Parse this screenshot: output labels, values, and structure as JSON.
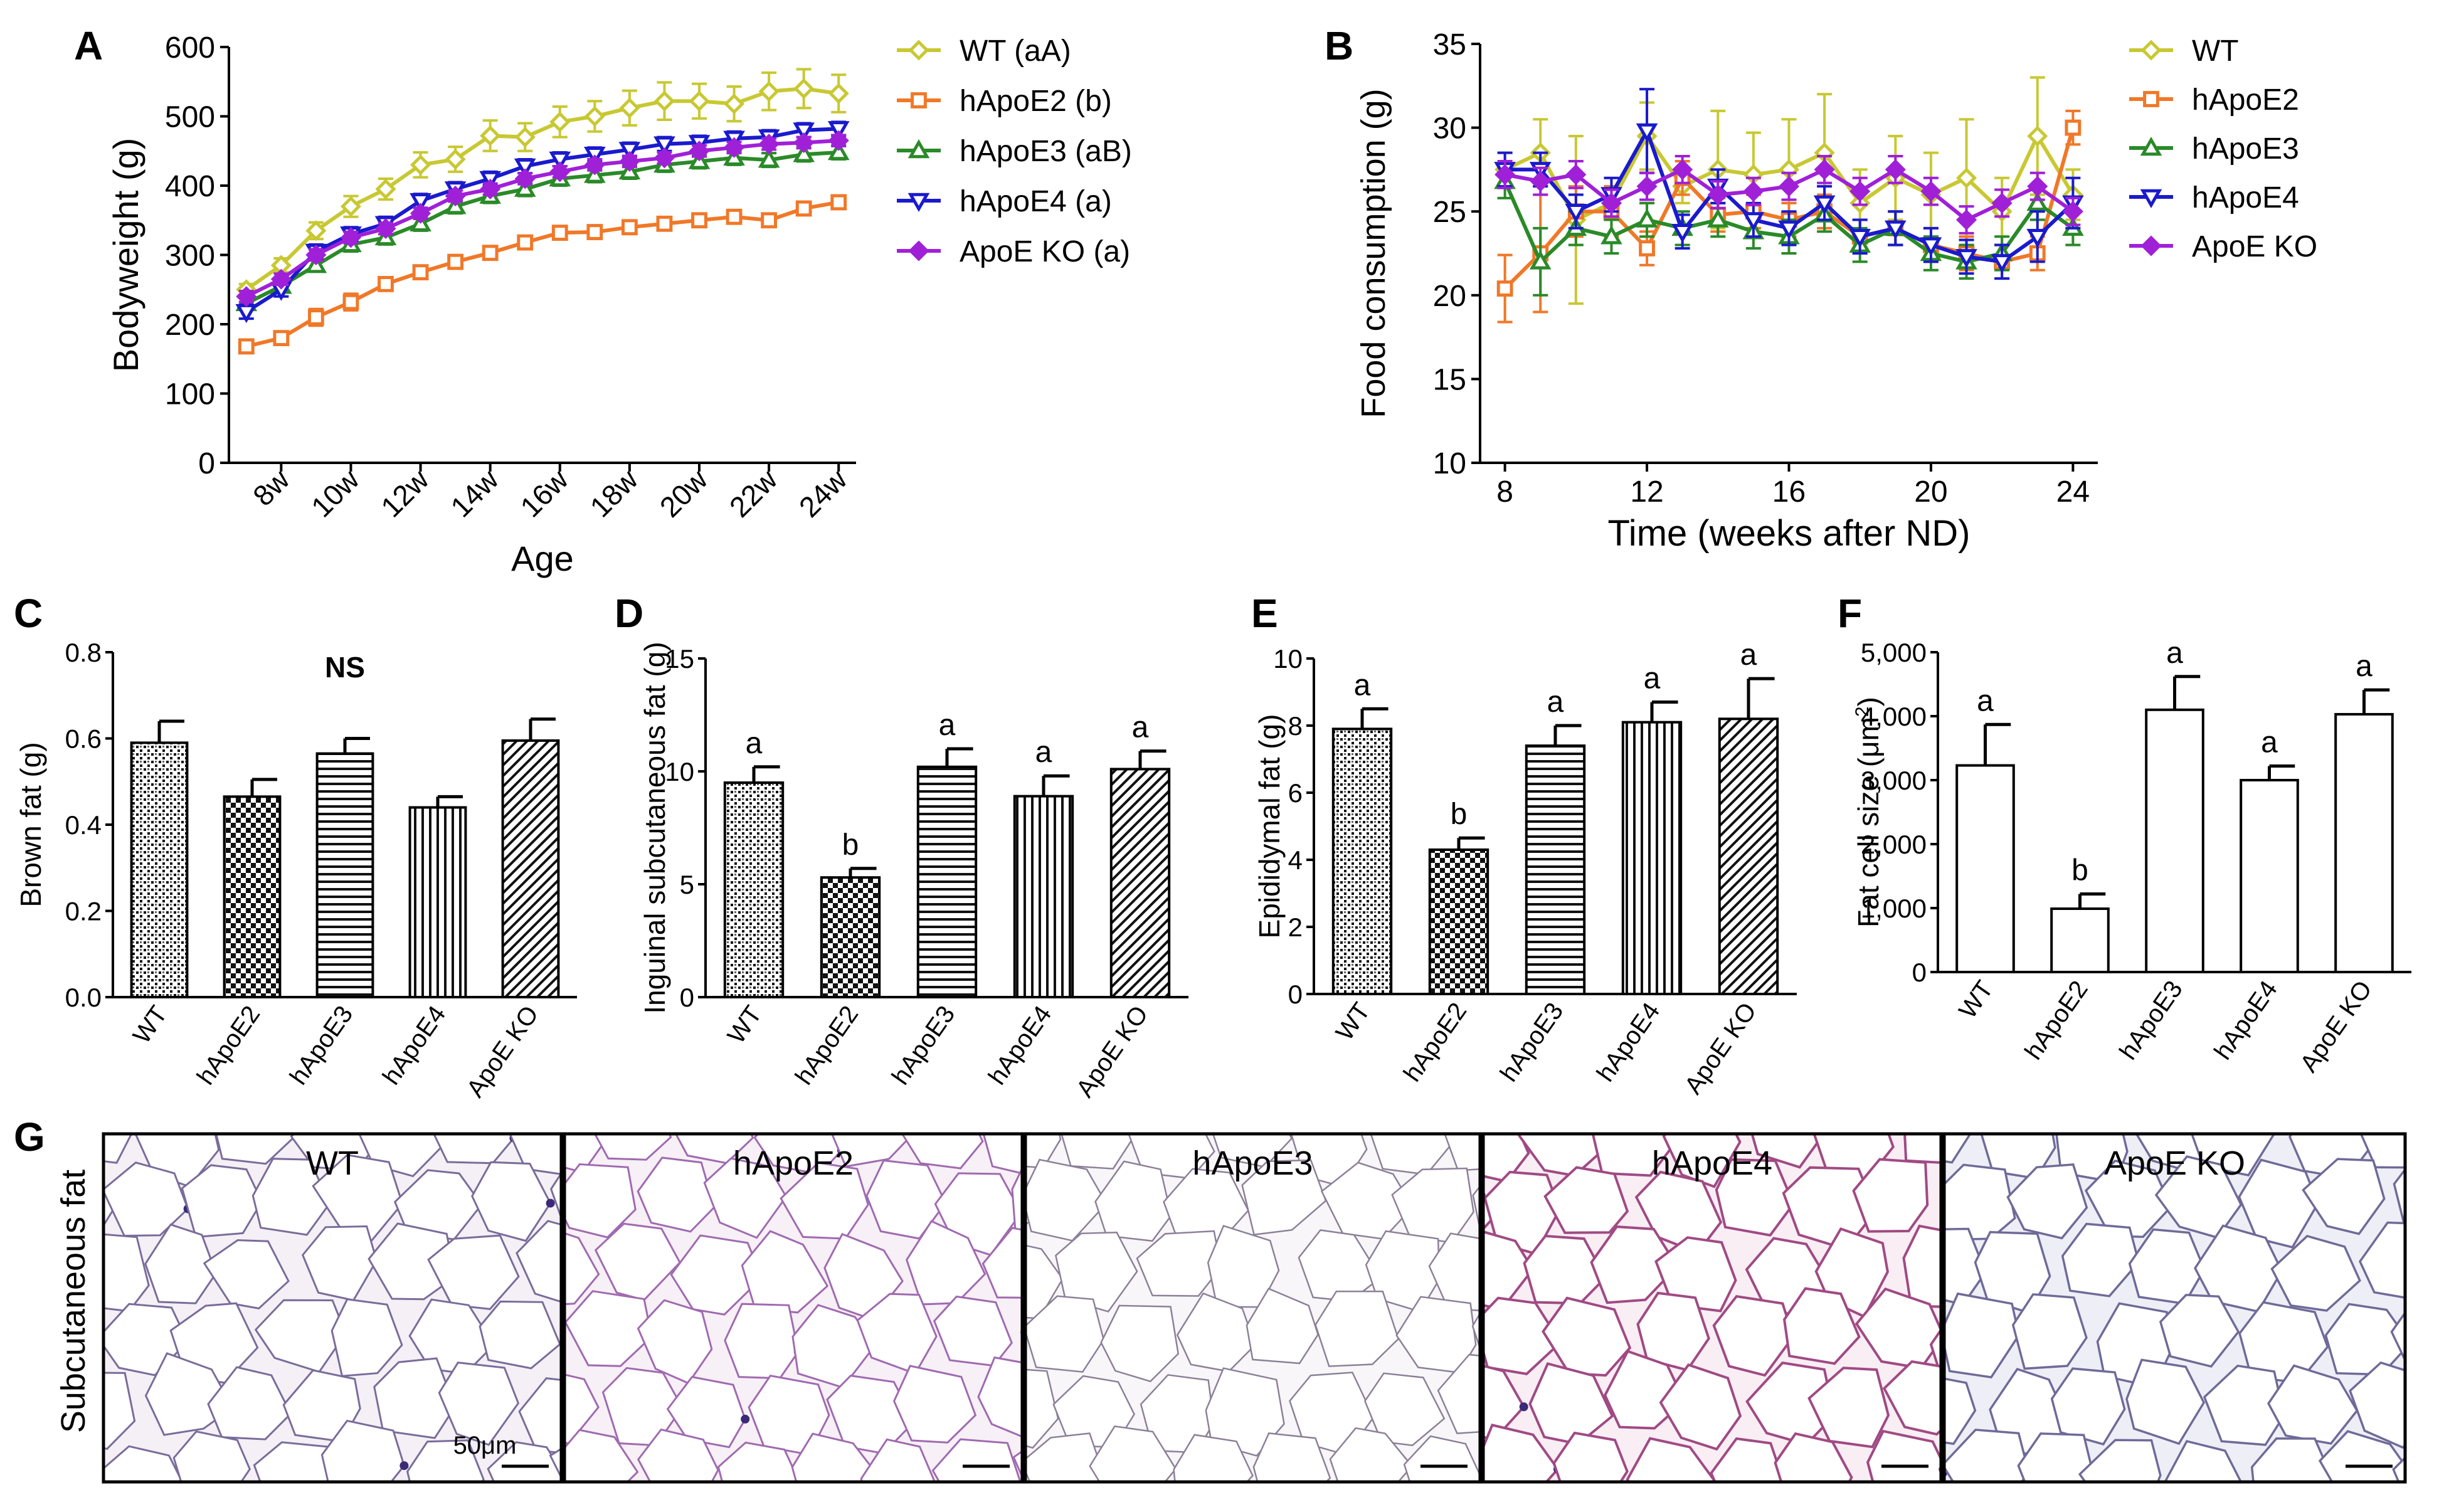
{
  "panels": {
    "A": "A",
    "B": "B",
    "C": "C",
    "D": "D",
    "E": "E",
    "F": "F",
    "G": "G"
  },
  "colors": {
    "WT": "#c8c832",
    "hApoE2": "#f07828",
    "hApoE3": "#2a8a28",
    "hApoE4": "#1a1acd",
    "ApoE KO": "#a020d8",
    "hApoE3_B": "#22c822"
  },
  "chart_data": [
    {
      "id": "A",
      "type": "line",
      "title": "",
      "xlabel": "Age",
      "ylabel": "Bodyweight (g)",
      "ylim": [
        0,
        600
      ],
      "yticks": [
        "0",
        "100",
        "200",
        "300",
        "400",
        "500",
        "600"
      ],
      "x": [
        7,
        8,
        9,
        10,
        11,
        12,
        13,
        14,
        15,
        16,
        17,
        18,
        19,
        20,
        21,
        22,
        23,
        24
      ],
      "xticks": [
        "8w",
        "10w",
        "12w",
        "14w",
        "16w",
        "18w",
        "20w",
        "22w",
        "24w"
      ],
      "xtick_values": [
        8,
        10,
        12,
        14,
        16,
        18,
        20,
        22,
        24
      ],
      "xlim": [
        6.5,
        24.5
      ],
      "legend_position": "right",
      "series": [
        {
          "name": "WT",
          "legend": "WT (aA)",
          "marker": "diamond-open",
          "values": [
            250,
            285,
            335,
            370,
            395,
            430,
            438,
            472,
            470,
            492,
            500,
            512,
            522,
            522,
            518,
            536,
            540,
            533
          ],
          "err": [
            8,
            10,
            12,
            15,
            15,
            18,
            18,
            22,
            20,
            22,
            22,
            25,
            27,
            25,
            25,
            27,
            28,
            27
          ]
        },
        {
          "name": "hApoE2",
          "legend": "hApoE2 (b)",
          "marker": "square-open",
          "values": [
            168,
            180,
            210,
            232,
            258,
            275,
            290,
            303,
            318,
            332,
            333,
            340,
            345,
            350,
            355,
            350,
            367,
            376
          ],
          "err": [
            6,
            6,
            12,
            12,
            8,
            8,
            8,
            8,
            8,
            8,
            8,
            8,
            8,
            8,
            8,
            8,
            8,
            8
          ]
        },
        {
          "name": "hApoE3",
          "legend": "hApoE3 (aB)",
          "marker": "triangle-open",
          "values": [
            230,
            255,
            285,
            315,
            325,
            345,
            370,
            385,
            395,
            410,
            415,
            420,
            430,
            435,
            440,
            437,
            445,
            448
          ],
          "err": [
            8,
            8,
            8,
            10,
            10,
            10,
            10,
            10,
            10,
            10,
            10,
            10,
            10,
            10,
            10,
            10,
            10,
            10
          ]
        },
        {
          "name": "hApoE4",
          "legend": "hApoE4 (a)",
          "marker": "triangle-down-open",
          "values": [
            218,
            250,
            305,
            330,
            345,
            378,
            395,
            410,
            428,
            438,
            445,
            452,
            460,
            462,
            468,
            470,
            480,
            482
          ],
          "err": [
            10,
            10,
            10,
            10,
            10,
            10,
            10,
            10,
            10,
            10,
            10,
            10,
            10,
            10,
            10,
            10,
            10,
            10
          ]
        },
        {
          "name": "ApoE KO",
          "legend": "ApoE KO (a)",
          "marker": "diamond-filled",
          "values": [
            240,
            265,
            300,
            325,
            338,
            360,
            385,
            395,
            410,
            420,
            430,
            435,
            440,
            450,
            455,
            460,
            462,
            465
          ],
          "err": [
            8,
            8,
            8,
            8,
            8,
            8,
            8,
            8,
            8,
            8,
            8,
            8,
            8,
            8,
            8,
            8,
            8,
            8
          ]
        }
      ]
    },
    {
      "id": "B",
      "type": "line",
      "title": "",
      "xlabel": "Time (weeks after ND)",
      "ylabel": "Food consumption (g)",
      "ylim": [
        10,
        35
      ],
      "yticks": [
        "10",
        "15",
        "20",
        "25",
        "30",
        "35"
      ],
      "x": [
        8,
        9,
        10,
        11,
        12,
        13,
        14,
        15,
        16,
        17,
        18,
        19,
        20,
        21,
        22,
        23,
        24
      ],
      "xticks": [
        "8",
        "12",
        "16",
        "20",
        "24"
      ],
      "xtick_values": [
        8,
        12,
        16,
        20,
        24
      ],
      "xlim": [
        7.3,
        24.7
      ],
      "legend_position": "right",
      "series": [
        {
          "name": "WT",
          "legend": "WT",
          "marker": "diamond-open",
          "values": [
            27.5,
            28.5,
            24.5,
            25.5,
            29.5,
            26.5,
            27.5,
            27.2,
            27.5,
            28.5,
            25.5,
            27.0,
            26.0,
            27.0,
            25.0,
            29.5,
            26.0
          ],
          "err": [
            1,
            2,
            5,
            1,
            2,
            1,
            3.5,
            2.5,
            3,
            3.5,
            2,
            2.5,
            2.5,
            3.5,
            2,
            3.5,
            1.5
          ]
        },
        {
          "name": "hApoE2",
          "legend": "hApoE2",
          "marker": "square-open",
          "values": [
            20.4,
            22.5,
            25.0,
            25.0,
            22.8,
            27.0,
            24.8,
            25.0,
            24.5,
            25.0,
            23.5,
            24.0,
            23.0,
            22.5,
            22.0,
            22.5,
            30.0
          ],
          "err": [
            2,
            3.5,
            1.5,
            1.5,
            1,
            1,
            1,
            1,
            1,
            1,
            1,
            1,
            1,
            1,
            1,
            1,
            1
          ]
        },
        {
          "name": "hApoE3",
          "legend": "hApoE3",
          "marker": "triangle-open",
          "values": [
            26.8,
            22.0,
            24.0,
            23.5,
            24.5,
            24.0,
            24.5,
            23.8,
            23.5,
            24.8,
            23.0,
            24.0,
            22.5,
            22.0,
            22.5,
            25.5,
            24.0
          ],
          "err": [
            1,
            2,
            1,
            1,
            1,
            1,
            1,
            1,
            1,
            1,
            1,
            1,
            1,
            1,
            1,
            1,
            1
          ]
        },
        {
          "name": "hApoE4",
          "legend": "hApoE4",
          "marker": "triangle-down-open",
          "values": [
            27.5,
            27.5,
            25.0,
            26.0,
            29.8,
            23.8,
            26.5,
            24.5,
            24.0,
            25.5,
            23.5,
            24.0,
            23.0,
            22.3,
            22.0,
            23.5,
            25.5
          ],
          "err": [
            1,
            1,
            1,
            1,
            2.5,
            1,
            1,
            1,
            1,
            1,
            1,
            1,
            1,
            1,
            1,
            1.5,
            1.5
          ]
        },
        {
          "name": "ApoE KO",
          "legend": "ApoE KO",
          "marker": "diamond-filled",
          "values": [
            27.2,
            26.8,
            27.2,
            25.5,
            26.5,
            27.5,
            26.0,
            26.2,
            26.5,
            27.5,
            26.2,
            27.5,
            26.2,
            24.5,
            25.5,
            26.5,
            25.0
          ],
          "err": [
            0.8,
            0.8,
            0.8,
            0.8,
            0.8,
            0.8,
            0.8,
            0.8,
            0.8,
            0.8,
            0.8,
            0.8,
            0.8,
            0.8,
            0.8,
            0.8,
            0.8
          ]
        }
      ]
    },
    {
      "id": "C",
      "type": "bar",
      "title": "NS",
      "ylabel": "Brown fat (g)",
      "ylim": [
        0,
        0.8
      ],
      "yticks": [
        "0.0",
        "0.2",
        "0.4",
        "0.6",
        "0.8"
      ],
      "categories": [
        "WT",
        "hApoE2",
        "hApoE3",
        "hApoE4",
        "ApoE KO"
      ],
      "values": [
        0.59,
        0.465,
        0.565,
        0.44,
        0.595
      ],
      "err": [
        0.05,
        0.04,
        0.035,
        0.025,
        0.05
      ],
      "labels": [
        "",
        "",
        "",
        "",
        ""
      ]
    },
    {
      "id": "D",
      "type": "bar",
      "title": "",
      "ylabel": "Inguinal subcutaneous fat (g)",
      "ylim": [
        0,
        15
      ],
      "yticks": [
        "0",
        "5",
        "10",
        "15"
      ],
      "categories": [
        "WT",
        "hApoE2",
        "hApoE3",
        "hApoE4",
        "ApoE KO"
      ],
      "values": [
        9.5,
        5.3,
        10.2,
        8.9,
        10.1
      ],
      "err": [
        0.7,
        0.4,
        0.8,
        0.9,
        0.8
      ],
      "labels": [
        "a",
        "b",
        "a",
        "a",
        "a"
      ]
    },
    {
      "id": "E",
      "type": "bar",
      "title": "",
      "ylabel": "Epididymal fat (g)",
      "ylim": [
        0,
        10
      ],
      "yticks": [
        "0",
        "2",
        "4",
        "6",
        "8",
        "10"
      ],
      "categories": [
        "WT",
        "hApoE2",
        "hApoE3",
        "hApoE4",
        "ApoE KO"
      ],
      "values": [
        7.9,
        4.3,
        7.4,
        8.1,
        8.2
      ],
      "err": [
        0.6,
        0.35,
        0.6,
        0.6,
        1.2
      ],
      "labels": [
        "a",
        "b",
        "a",
        "a",
        "a"
      ]
    },
    {
      "id": "F",
      "type": "bar",
      "title": "",
      "ylabel": "Fat cell size (μm",
      "ylabel_sup": "2",
      "ylabel_end": ")",
      "ylim": [
        0,
        5000
      ],
      "yticks": [
        "0",
        "1,000",
        "2,000",
        "3,000",
        "4,000",
        "5,000"
      ],
      "categories": [
        "WT",
        "hApoE2",
        "hApoE3",
        "hApoE4",
        "ApoE KO"
      ],
      "values": [
        3230,
        990,
        4100,
        3000,
        4030
      ],
      "err": [
        640,
        230,
        520,
        220,
        380
      ],
      "labels": [
        "a",
        "b",
        "a",
        "a",
        "a"
      ]
    }
  ],
  "histology": {
    "row_label": "Subcutaneous fat",
    "scale_label": "50μm",
    "panels": [
      "WT",
      "hApoE2",
      "hApoE3",
      "hApoE4",
      "ApoE KO"
    ]
  }
}
